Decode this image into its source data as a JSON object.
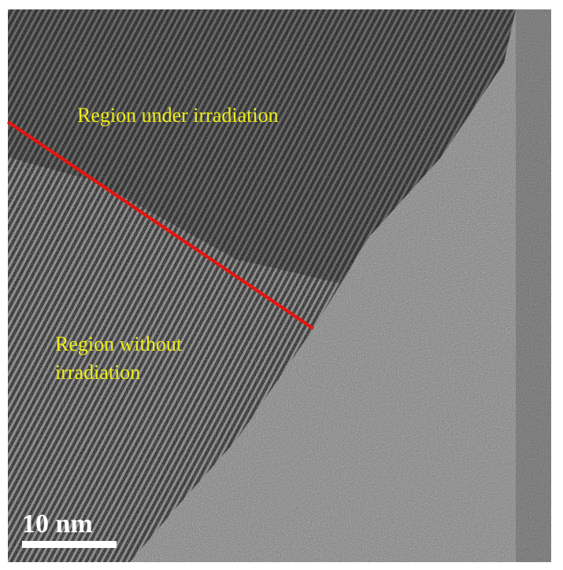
{
  "labels": {
    "upper": "Region under irradiation",
    "lower": [
      "Region without",
      "irradiation"
    ]
  },
  "scale_bar": {
    "label": "10 nm"
  }
}
